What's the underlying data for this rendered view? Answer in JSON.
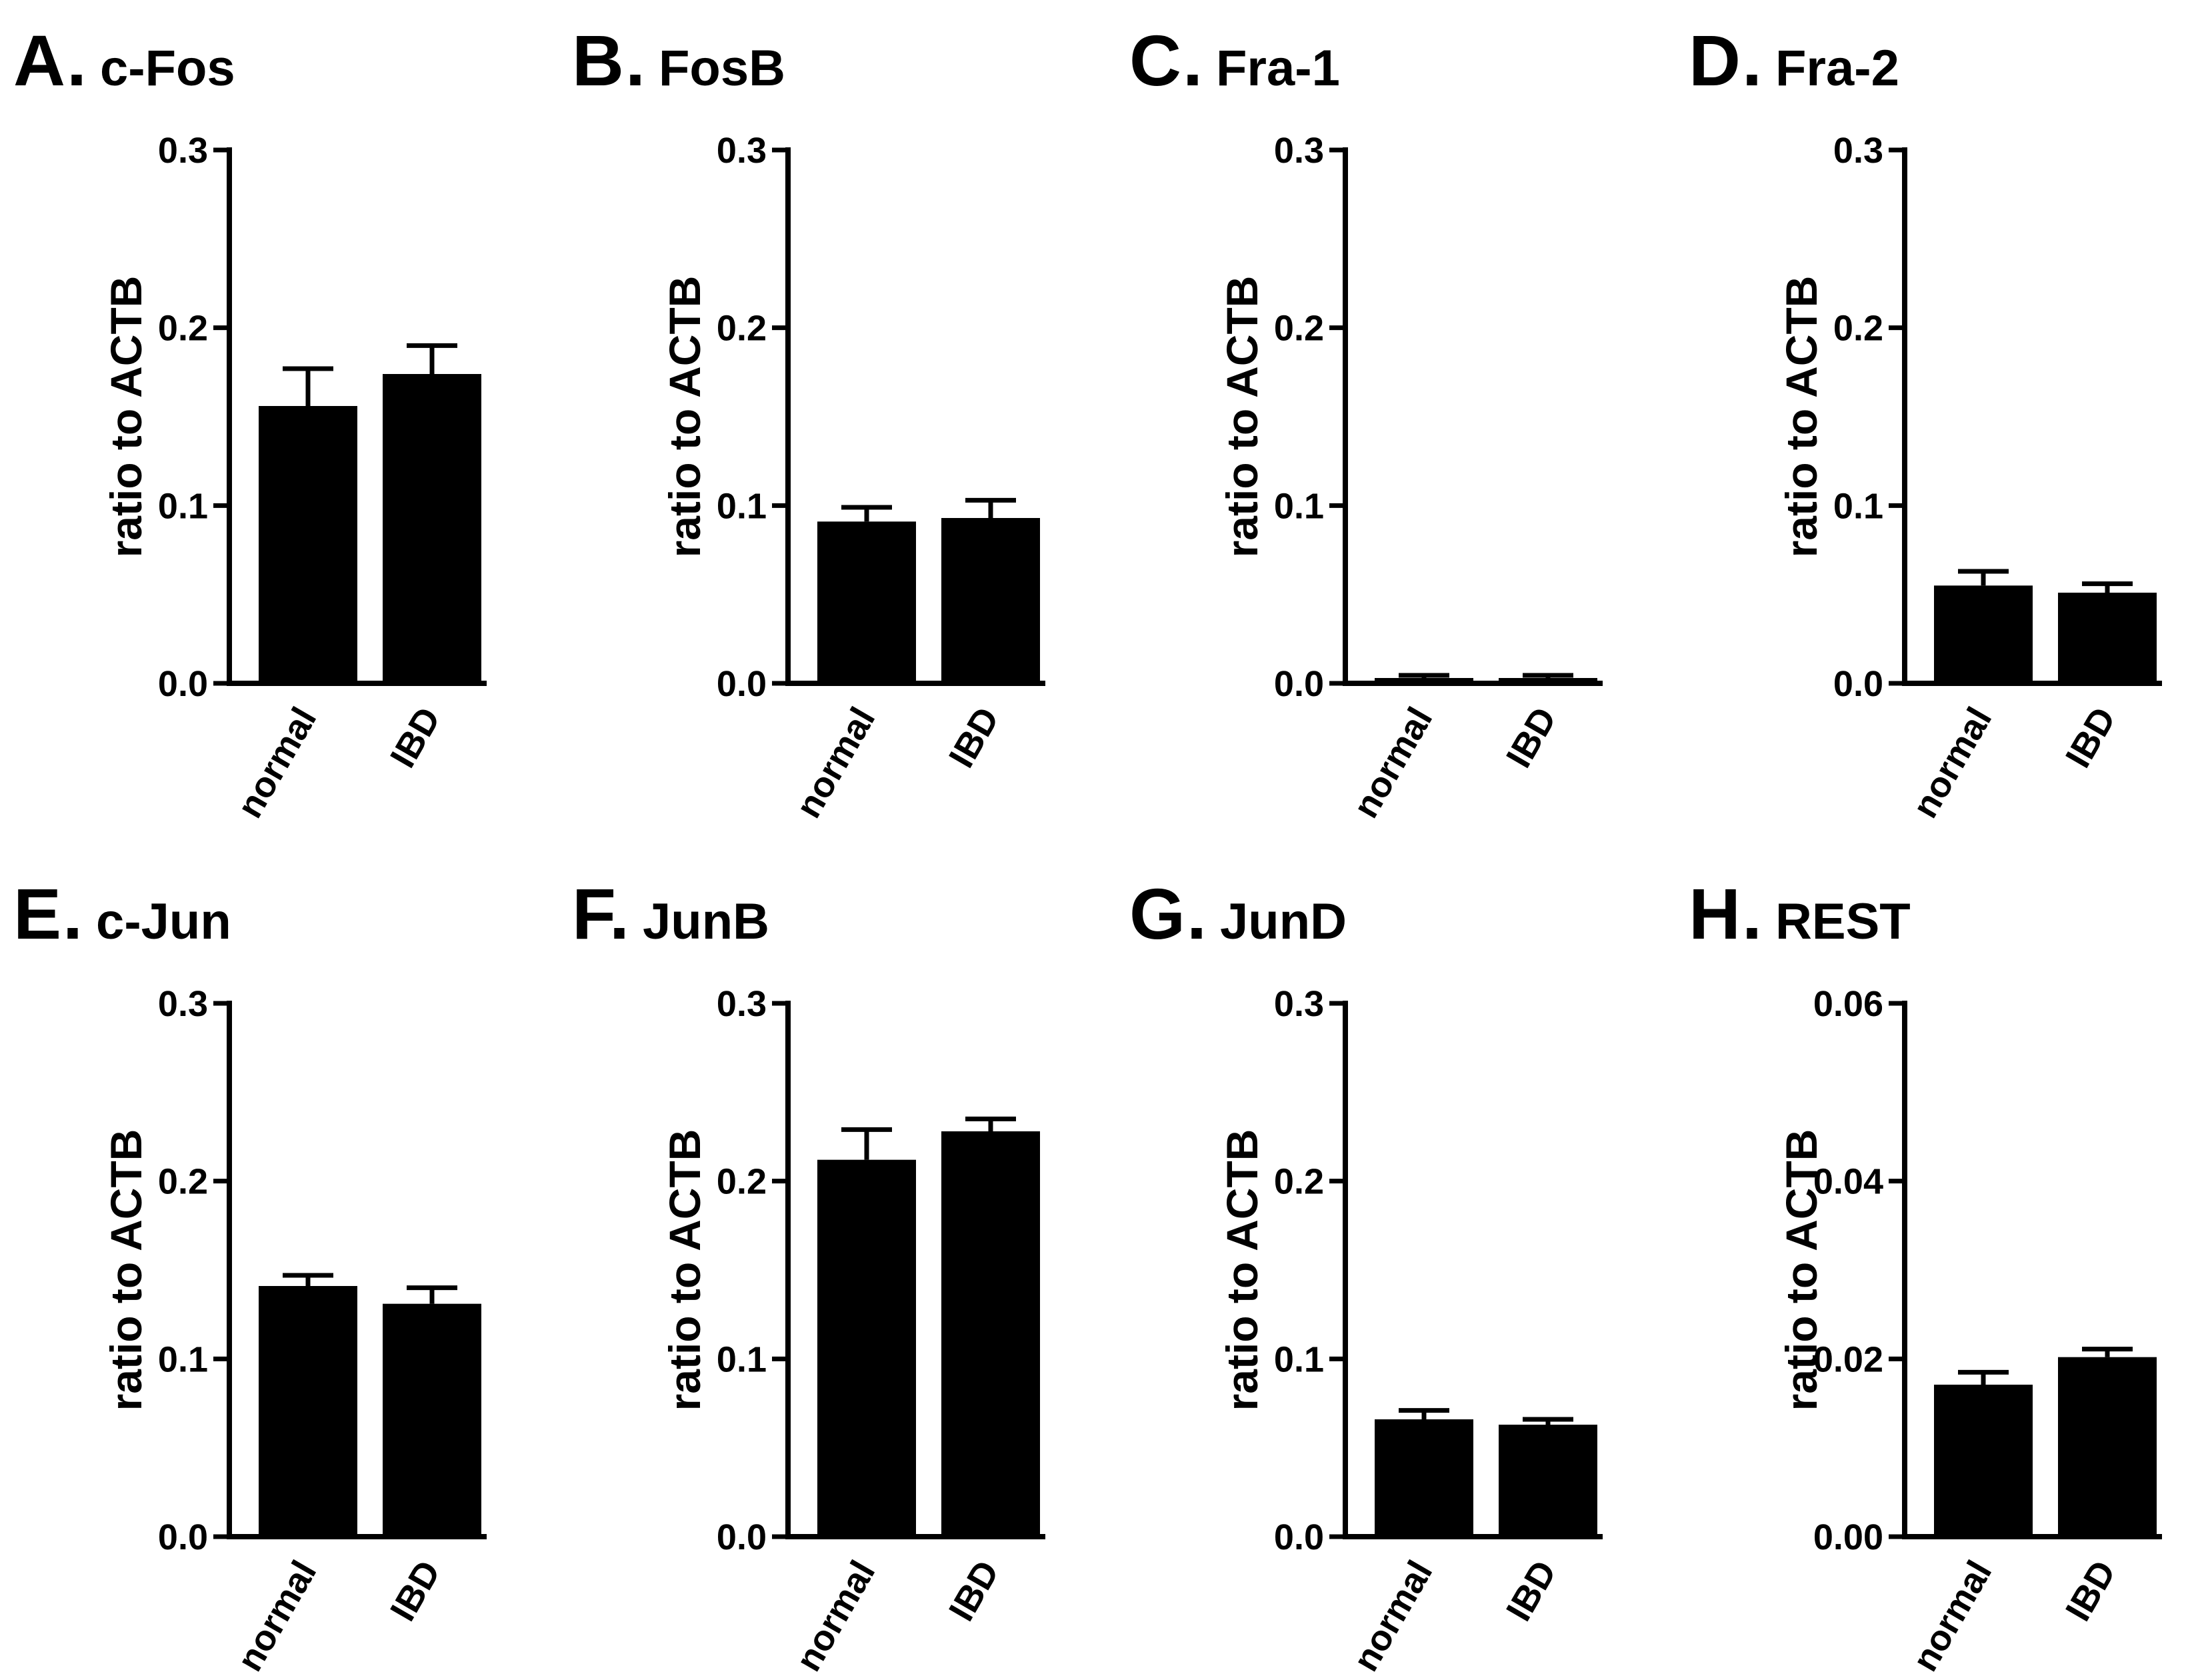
{
  "chart_data": [
    {
      "type": "bar",
      "letter": "A.",
      "title": "c-Fos",
      "categories": [
        "normal",
        "IBD"
      ],
      "values": [
        0.156,
        0.174
      ],
      "errors": [
        0.021,
        0.016
      ],
      "ylabel": "ratio to ACTB",
      "ylim": [
        0,
        0.3
      ],
      "yticks": [
        0.0,
        0.1,
        0.2,
        0.3
      ],
      "ytick_labels": [
        "0.0",
        "0.1",
        "0.2",
        "0.3"
      ]
    },
    {
      "type": "bar",
      "letter": "B.",
      "title": "FosB",
      "categories": [
        "normal",
        "IBD"
      ],
      "values": [
        0.091,
        0.093
      ],
      "errors": [
        0.008,
        0.01
      ],
      "ylabel": "ratio to ACTB",
      "ylim": [
        0,
        0.3
      ],
      "yticks": [
        0.0,
        0.1,
        0.2,
        0.3
      ],
      "ytick_labels": [
        "0.0",
        "0.1",
        "0.2",
        "0.3"
      ]
    },
    {
      "type": "bar",
      "letter": "C.",
      "title": "Fra-1",
      "categories": [
        "normal",
        "IBD"
      ],
      "values": [
        0.003,
        0.003
      ],
      "errors": [
        0.0015,
        0.0015
      ],
      "ylabel": "ratio to ACTB",
      "ylim": [
        0,
        0.3
      ],
      "yticks": [
        0.0,
        0.1,
        0.2,
        0.3
      ],
      "ytick_labels": [
        "0.0",
        "0.1",
        "0.2",
        "0.3"
      ]
    },
    {
      "type": "bar",
      "letter": "D.",
      "title": "Fra-2",
      "categories": [
        "normal",
        "IBD"
      ],
      "values": [
        0.055,
        0.051
      ],
      "errors": [
        0.008,
        0.005
      ],
      "ylabel": "ratio to ACTB",
      "ylim": [
        0,
        0.3
      ],
      "yticks": [
        0.0,
        0.1,
        0.2,
        0.3
      ],
      "ytick_labels": [
        "0.0",
        "0.1",
        "0.2",
        "0.3"
      ]
    },
    {
      "type": "bar",
      "letter": "E.",
      "title": "c-Jun",
      "categories": [
        "normal",
        "IBD"
      ],
      "values": [
        0.141,
        0.131
      ],
      "errors": [
        0.006,
        0.009
      ],
      "ylabel": "ratio to ACTB",
      "ylim": [
        0,
        0.3
      ],
      "yticks": [
        0.0,
        0.1,
        0.2,
        0.3
      ],
      "ytick_labels": [
        "0.0",
        "0.1",
        "0.2",
        "0.3"
      ]
    },
    {
      "type": "bar",
      "letter": "F.",
      "title": "JunB",
      "categories": [
        "normal",
        "IBD"
      ],
      "values": [
        0.212,
        0.228
      ],
      "errors": [
        0.017,
        0.007
      ],
      "ylabel": "ratio to ACTB",
      "ylim": [
        0,
        0.3
      ],
      "yticks": [
        0.0,
        0.1,
        0.2,
        0.3
      ],
      "ytick_labels": [
        "0.0",
        "0.1",
        "0.2",
        "0.3"
      ]
    },
    {
      "type": "bar",
      "letter": "G.",
      "title": "JunD",
      "categories": [
        "normal",
        "IBD"
      ],
      "values": [
        0.066,
        0.063
      ],
      "errors": [
        0.005,
        0.003
      ],
      "ylabel": "ratio to ACTB",
      "ylim": [
        0,
        0.3
      ],
      "yticks": [
        0.0,
        0.1,
        0.2,
        0.3
      ],
      "ytick_labels": [
        "0.0",
        "0.1",
        "0.2",
        "0.3"
      ]
    },
    {
      "type": "bar",
      "letter": "H.",
      "title": "REST",
      "categories": [
        "normal",
        "IBD"
      ],
      "values": [
        0.0171,
        0.0202
      ],
      "errors": [
        0.0014,
        0.0009
      ],
      "ylabel": "ratio to ACTB",
      "ylim": [
        0,
        0.06
      ],
      "yticks": [
        0.0,
        0.02,
        0.04,
        0.06
      ],
      "ytick_labels": [
        "0.00",
        "0.02",
        "0.04",
        "0.06"
      ]
    }
  ],
  "style": {
    "bar_color": "#000000",
    "axis_color": "#000000",
    "background": "#ffffff"
  }
}
